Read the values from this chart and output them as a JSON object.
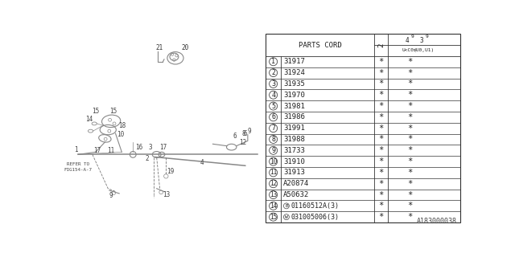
{
  "rows": [
    [
      "1",
      "31917",
      "*",
      "*"
    ],
    [
      "2",
      "31924",
      "*",
      "*"
    ],
    [
      "3",
      "31935",
      "*",
      "*"
    ],
    [
      "4",
      "31970",
      "*",
      "*"
    ],
    [
      "5",
      "31981",
      "*",
      "*"
    ],
    [
      "6",
      "31986",
      "*",
      "*"
    ],
    [
      "7",
      "31991",
      "*",
      "*"
    ],
    [
      "8",
      "31988",
      "*",
      "*"
    ],
    [
      "9",
      "31733",
      "*",
      "*"
    ],
    [
      "10",
      "31910",
      "*",
      "*"
    ],
    [
      "11",
      "31913",
      "*",
      "*"
    ],
    [
      "12",
      "A20874",
      "*",
      "*"
    ],
    [
      "13",
      "A50632",
      "*",
      "*"
    ],
    [
      "14",
      "B",
      "01160512A(3)",
      "*",
      "*"
    ],
    [
      "15",
      "W",
      "031005006(3)",
      "*",
      "*"
    ]
  ],
  "diagram_ref": "A183000038",
  "bg_color": "#ffffff",
  "text_color": "#222222",
  "font_size": 6.5,
  "header_font_size": 6.5
}
